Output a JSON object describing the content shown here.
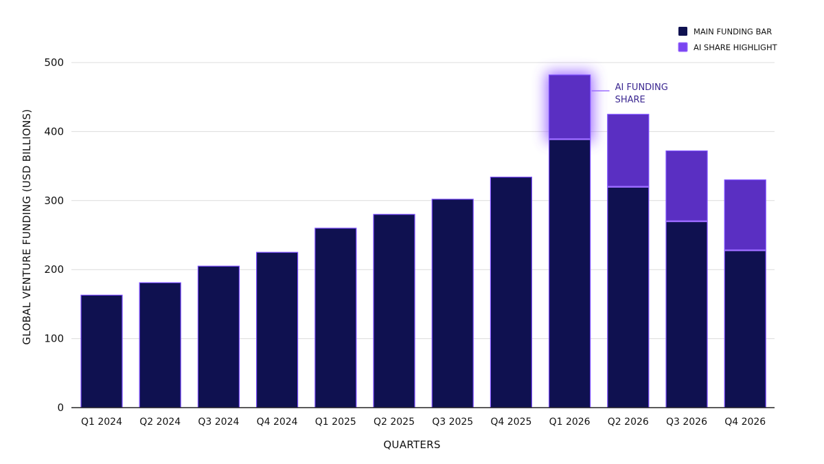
{
  "chart_data": {
    "type": "bar",
    "title": "",
    "xlabel": "QUARTERS",
    "ylabel": "GLOBAL VENTURE FUNDING (USD BILLIONS)",
    "ylim": [
      0,
      500
    ],
    "yticks": [
      0,
      100,
      200,
      300,
      400,
      500
    ],
    "grid": true,
    "legend_position": "top-right",
    "categories": [
      "Q1 2024",
      "Q2 2024",
      "Q3 2024",
      "Q4 2024",
      "Q1 2025",
      "Q2 2025",
      "Q3 2025",
      "Q4 2025",
      "Q1 2026",
      "Q2 2026",
      "Q3 2026",
      "Q4 2026"
    ],
    "series": [
      {
        "name": "MAIN FUNDING BAR",
        "color": "#0f1150",
        "values": [
          163,
          181,
          205,
          225,
          260,
          280,
          302,
          334,
          389,
          320,
          270,
          228
        ]
      },
      {
        "name": "AI SHARE HIGHLIGHT",
        "color": "#5a2fc2",
        "values": [
          0,
          0,
          0,
          0,
          0,
          0,
          0,
          0,
          93,
          105,
          102,
          102
        ]
      }
    ],
    "annotations": [
      {
        "text_lines": [
          "AI FUNDING",
          "SHARE"
        ],
        "target_category": "Q1 2026",
        "target_series": "AI SHARE HIGHLIGHT"
      }
    ],
    "colors": {
      "main": "#0f1150",
      "ai": "#5a2fc2",
      "bar_edge": "#7b4dff",
      "accent_line": "#9b6bff",
      "annotation_text": "#3a2690",
      "grid": "#dcdcdc",
      "axis": "#222222"
    }
  }
}
